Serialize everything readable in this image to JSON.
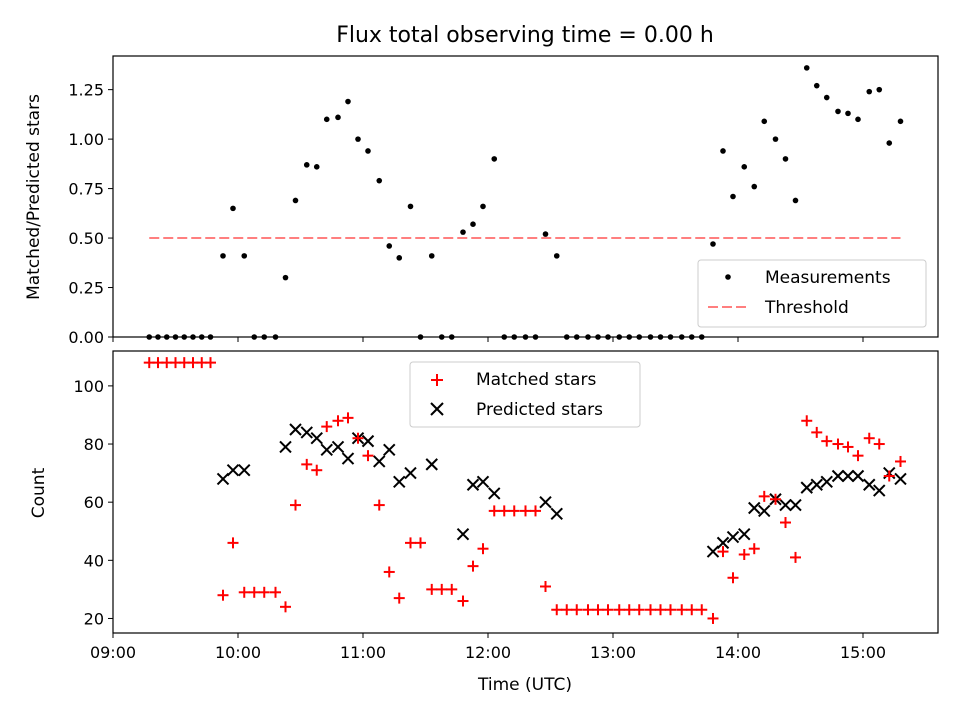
{
  "chart_data": [
    {
      "type": "scatter",
      "title": "Flux total observing time = 0.00 h",
      "xlabel": "",
      "ylabel": "Matched/Predicted stars",
      "xlim": [
        9.0,
        15.6
      ],
      "ylim": [
        0.0,
        1.42
      ],
      "yticks": [
        0.0,
        0.25,
        0.5,
        0.75,
        1.0,
        1.25
      ],
      "ytick_labels": [
        "0.00",
        "0.25",
        "0.50",
        "0.75",
        "1.00",
        "1.25"
      ],
      "legend": "bottom-right",
      "series": [
        {
          "name": "Measurements",
          "color": "#000000",
          "marker": "dot",
          "x": [
            9.29,
            9.36,
            9.43,
            9.5,
            9.57,
            9.64,
            9.71,
            9.78,
            9.88,
            9.96,
            10.05,
            10.13,
            10.21,
            10.3,
            10.38,
            10.46,
            10.55,
            10.63,
            10.71,
            10.8,
            10.88,
            10.96,
            11.04,
            11.13,
            11.21,
            11.29,
            11.38,
            11.46,
            11.55,
            11.63,
            11.71,
            11.8,
            11.88,
            11.96,
            12.05,
            12.13,
            12.21,
            12.3,
            12.38,
            12.46,
            12.55,
            12.63,
            12.71,
            12.8,
            12.88,
            12.96,
            13.05,
            13.13,
            13.21,
            13.3,
            13.38,
            13.46,
            13.55,
            13.63,
            13.71,
            13.8,
            13.88,
            13.96,
            14.05,
            14.13,
            14.21,
            14.3,
            14.38,
            14.46,
            14.55,
            14.63,
            14.71,
            14.8,
            14.88,
            14.96,
            15.05,
            15.13,
            15.21,
            15.3
          ],
          "y": [
            0,
            0,
            0,
            0,
            0,
            0,
            0,
            0,
            0.41,
            0.65,
            0.41,
            0,
            0,
            0,
            0.3,
            0.69,
            0.87,
            0.86,
            1.1,
            1.11,
            1.19,
            1.0,
            0.94,
            0.79,
            0.46,
            0.4,
            0.66,
            0,
            0.41,
            0,
            0,
            0.53,
            0.57,
            0.66,
            0.9,
            0,
            0,
            0,
            0,
            0.52,
            0.41,
            0,
            0,
            0,
            0,
            0,
            0,
            0,
            0,
            0,
            0,
            0,
            0,
            0,
            0,
            0.47,
            0.94,
            0.71,
            0.86,
            0.76,
            1.09,
            1.0,
            0.9,
            0.69,
            1.36,
            1.27,
            1.21,
            1.14,
            1.13,
            1.1,
            1.24,
            1.25,
            0.98,
            1.09
          ]
        },
        {
          "name": "Threshold",
          "color": "#ff7f7f",
          "style": "dashed",
          "x": [
            9.29,
            15.3
          ],
          "y": [
            0.5,
            0.5
          ]
        }
      ]
    },
    {
      "type": "scatter",
      "xlabel": "Time (UTC)",
      "ylabel": "Count",
      "xlim": [
        9.0,
        15.6
      ],
      "ylim": [
        15,
        112
      ],
      "xticks": [
        9,
        10,
        11,
        12,
        13,
        14,
        15
      ],
      "xtick_labels": [
        "09:00",
        "10:00",
        "11:00",
        "12:00",
        "13:00",
        "14:00",
        "15:00"
      ],
      "yticks": [
        20,
        40,
        60,
        80,
        100
      ],
      "ytick_labels": [
        "20",
        "40",
        "60",
        "80",
        "100"
      ],
      "legend": "top-center",
      "series": [
        {
          "name": "Matched stars",
          "color": "#ff0000",
          "marker": "plus",
          "x": [
            9.29,
            9.36,
            9.43,
            9.5,
            9.57,
            9.64,
            9.71,
            9.78,
            9.88,
            9.96,
            10.05,
            10.13,
            10.21,
            10.3,
            10.38,
            10.46,
            10.55,
            10.63,
            10.71,
            10.8,
            10.88,
            10.96,
            11.04,
            11.13,
            11.21,
            11.29,
            11.38,
            11.46,
            11.55,
            11.63,
            11.71,
            11.8,
            11.88,
            11.96,
            12.05,
            12.13,
            12.21,
            12.3,
            12.38,
            12.46,
            12.55,
            12.63,
            12.71,
            12.8,
            12.88,
            12.96,
            13.05,
            13.13,
            13.21,
            13.3,
            13.38,
            13.46,
            13.55,
            13.63,
            13.71,
            13.8,
            13.88,
            13.96,
            14.05,
            14.13,
            14.21,
            14.3,
            14.38,
            14.46,
            14.55,
            14.63,
            14.71,
            14.8,
            14.88,
            14.96,
            15.05,
            15.13,
            15.21,
            15.3
          ],
          "y": [
            108,
            108,
            108,
            108,
            108,
            108,
            108,
            108,
            28,
            46,
            29,
            29,
            29,
            29,
            24,
            59,
            73,
            71,
            86,
            88,
            89,
            82,
            76,
            59,
            36,
            27,
            46,
            46,
            30,
            30,
            30,
            26,
            38,
            44,
            57,
            57,
            57,
            57,
            57,
            31,
            23,
            23,
            23,
            23,
            23,
            23,
            23,
            23,
            23,
            23,
            23,
            23,
            23,
            23,
            23,
            20,
            43,
            34,
            42,
            44,
            62,
            61,
            53,
            41,
            88,
            84,
            81,
            80,
            79,
            76,
            82,
            80,
            69,
            74
          ]
        },
        {
          "name": "Predicted stars",
          "color": "#000000",
          "marker": "x",
          "x": [
            9.88,
            9.96,
            10.05,
            10.38,
            10.46,
            10.55,
            10.63,
            10.71,
            10.8,
            10.88,
            10.96,
            11.04,
            11.13,
            11.21,
            11.29,
            11.38,
            11.55,
            11.8,
            11.88,
            11.96,
            12.05,
            12.46,
            12.55,
            13.8,
            13.88,
            13.96,
            14.05,
            14.13,
            14.21,
            14.3,
            14.38,
            14.46,
            14.55,
            14.63,
            14.71,
            14.8,
            14.88,
            14.96,
            15.05,
            15.13,
            15.21,
            15.3
          ],
          "y": [
            68,
            71,
            71,
            79,
            85,
            84,
            82,
            78,
            79,
            75,
            82,
            81,
            74,
            78,
            67,
            70,
            73,
            49,
            66,
            67,
            63,
            60,
            56,
            43,
            46,
            48,
            49,
            58,
            57,
            61,
            59,
            59,
            65,
            66,
            67,
            69,
            69,
            69,
            66,
            64,
            70,
            68
          ]
        }
      ]
    }
  ]
}
